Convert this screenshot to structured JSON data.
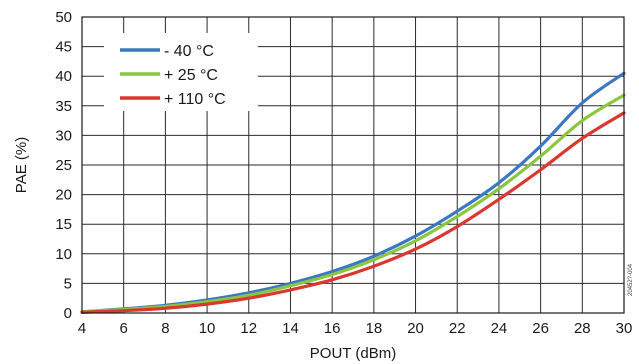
{
  "chart_data": {
    "type": "line",
    "xlabel": "POUT (dBm)",
    "ylabel": "PAE (%)",
    "xlim": [
      4,
      30
    ],
    "ylim": [
      0,
      50
    ],
    "xticks": [
      4,
      6,
      8,
      10,
      12,
      14,
      16,
      18,
      20,
      22,
      24,
      26,
      28,
      30
    ],
    "yticks": [
      0,
      5,
      10,
      15,
      20,
      25,
      30,
      35,
      40,
      45,
      50
    ],
    "grid": true,
    "legend_position": "top-left",
    "figure_id": "20452?-004",
    "series": [
      {
        "name": "- 40 °C",
        "color": "#3b78c4",
        "x": [
          4,
          6,
          8,
          10,
          12,
          14,
          16,
          18,
          20,
          22,
          24,
          26,
          28,
          30
        ],
        "y": [
          0.2,
          0.7,
          1.3,
          2.2,
          3.4,
          5.0,
          7.0,
          9.6,
          13.0,
          17.2,
          22.0,
          28.2,
          35.5,
          40.5
        ]
      },
      {
        "name": "+ 25 °C",
        "color": "#8cc63f",
        "x": [
          4,
          6,
          8,
          10,
          12,
          14,
          16,
          18,
          20,
          22,
          24,
          26,
          28,
          30
        ],
        "y": [
          0.2,
          0.6,
          1.1,
          1.9,
          3.0,
          4.6,
          6.5,
          9.0,
          12.2,
          16.3,
          21.0,
          26.5,
          32.5,
          36.8
        ]
      },
      {
        "name": "+ 110 °C",
        "color": "#d9372f",
        "x": [
          4,
          6,
          8,
          10,
          12,
          14,
          16,
          18,
          20,
          22,
          24,
          26,
          28,
          30
        ],
        "y": [
          0.1,
          0.4,
          0.8,
          1.5,
          2.5,
          3.9,
          5.6,
          7.9,
          10.8,
          14.6,
          19.2,
          24.2,
          29.5,
          33.8
        ]
      }
    ]
  }
}
